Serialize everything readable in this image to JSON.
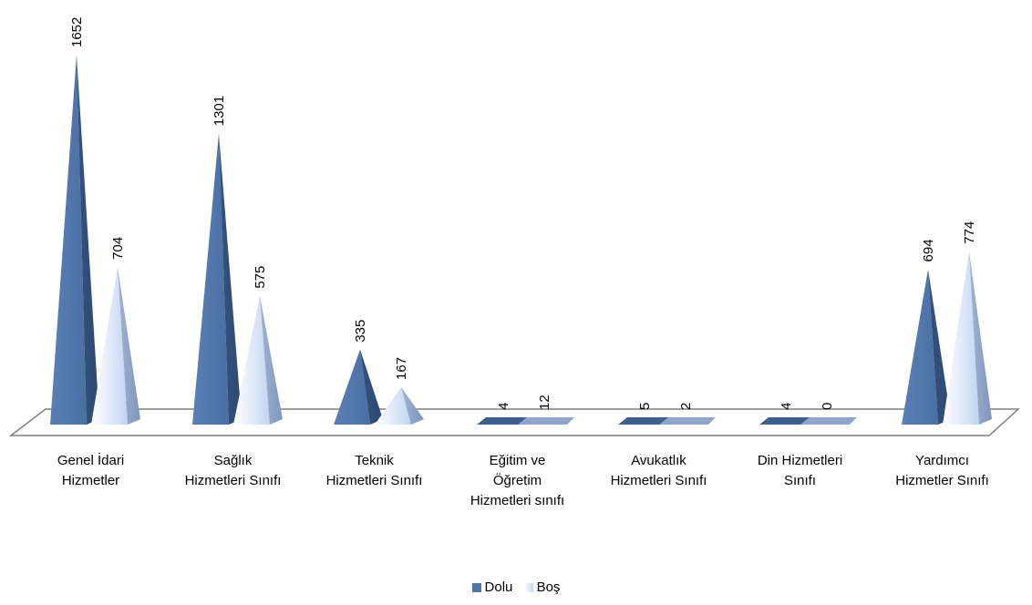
{
  "chart_data": {
    "type": "bar",
    "style": "3d-pyramid",
    "categories": [
      [
        "Genel İdari",
        "Hizmetler"
      ],
      [
        "Sağlık",
        "Hizmetleri Sınıfı"
      ],
      [
        "Teknik",
        "Hizmetleri Sınıfı"
      ],
      [
        "Eğitim ve",
        "Öğretim",
        "Hizmetleri sınıfı"
      ],
      [
        "Avukatlık",
        "Hizmetleri Sınıfı"
      ],
      [
        "Din Hizmetleri",
        "Sınıfı"
      ],
      [
        "Yardımcı",
        "Hizmetler Sınıfı"
      ]
    ],
    "series": [
      {
        "name": "Dolu",
        "values": [
          1652,
          1301,
          335,
          4,
          5,
          4,
          694
        ],
        "color": "#4f74a8"
      },
      {
        "name": "Boş",
        "values": [
          704,
          575,
          167,
          12,
          2,
          0,
          774
        ],
        "color": "#c6d6f2"
      }
    ],
    "ylim": [
      0,
      1652
    ],
    "legend_position": "bottom",
    "grid": false
  }
}
